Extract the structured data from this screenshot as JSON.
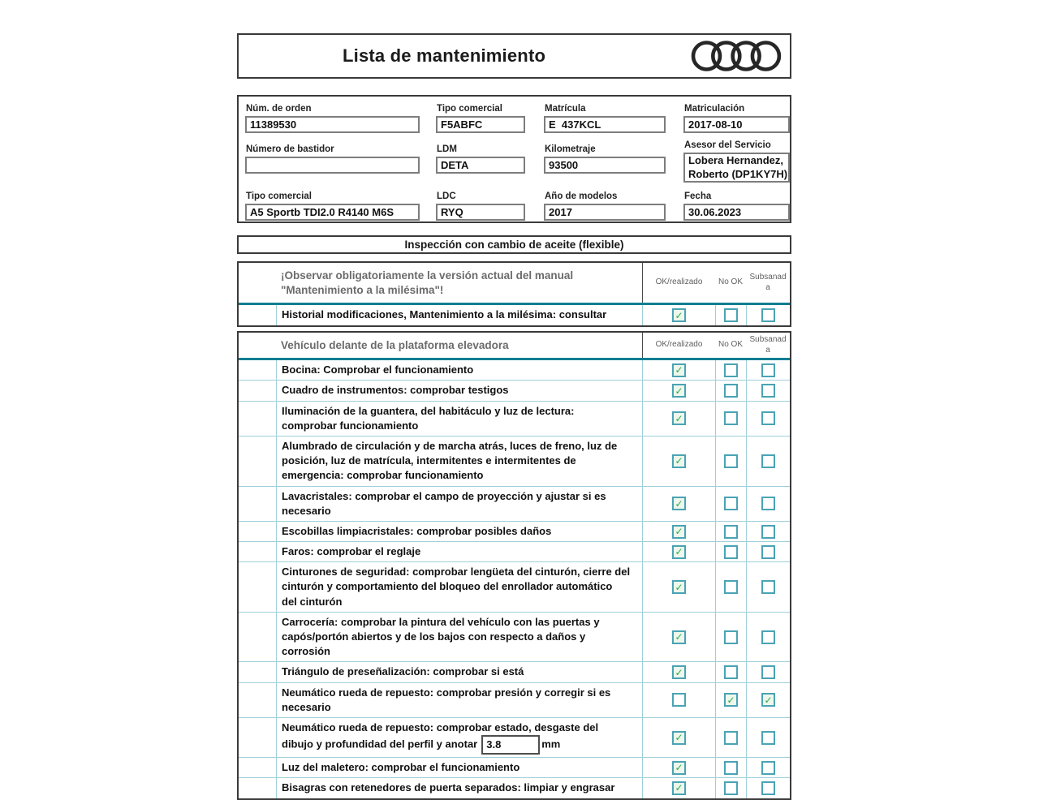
{
  "header": {
    "title": "Lista de mantenimiento",
    "logo_icon": "audi-rings-icon"
  },
  "form": {
    "fields": [
      {
        "label": "Núm. de orden",
        "value": "11389530"
      },
      {
        "label": "Tipo comercial",
        "value": "F5ABFC"
      },
      {
        "label": "Matrícula",
        "value": "E  437KCL"
      },
      {
        "label": "Matriculación",
        "value": "2017-08-10"
      },
      {
        "label": "Número de bastidor",
        "value": ""
      },
      {
        "label": "LDM",
        "value": "DETA"
      },
      {
        "label": "Kilometraje",
        "value": "93500"
      },
      {
        "label": "Asesor del Servicio",
        "value": "Lobera Hernandez,\nRoberto (DP1KY7H)"
      },
      {
        "label": "Tipo comercial",
        "value": "A5 Sportb TDI2.0 R4140 M6S"
      },
      {
        "label": "LDC",
        "value": "RYQ"
      },
      {
        "label": "Año de modelos",
        "value": "2017"
      },
      {
        "label": "Fecha",
        "value": "30.06.2023"
      }
    ]
  },
  "section_bar": {
    "title": "Inspección con cambio de aceite (flexible)"
  },
  "columns": {
    "ok": "OK/realizado",
    "nok": "No OK",
    "sub": "Subsanada"
  },
  "checklists": [
    {
      "heading": "¡Observar obligatoriamente la versión actual del manual\n\"Mantenimiento a la milésima\"!",
      "rows": [
        {
          "text": "Historial modificaciones, Mantenimiento a la milésima: consultar",
          "ok": true,
          "nok": false,
          "sub": false
        }
      ]
    },
    {
      "heading": "Vehículo delante de la plataforma elevadora",
      "rows": [
        {
          "text": "Bocina: Comprobar el funcionamiento",
          "ok": true,
          "nok": false,
          "sub": false
        },
        {
          "text": "Cuadro de instrumentos: comprobar testigos",
          "ok": true,
          "nok": false,
          "sub": false
        },
        {
          "text": "Iluminación de la guantera, del habitáculo y luz de lectura:\ncomprobar funcionamiento",
          "ok": true,
          "nok": false,
          "sub": false
        },
        {
          "text": "Alumbrado de circulación y de marcha atrás, luces de freno, luz de\nposición, luz de matrícula, intermitentes e intermitentes de\nemergencia: comprobar funcionamiento",
          "ok": true,
          "nok": false,
          "sub": false
        },
        {
          "text": "Lavacristales: comprobar el campo de proyección y ajustar si es\nnecesario",
          "ok": true,
          "nok": false,
          "sub": false
        },
        {
          "text": "Escobillas limpiacristales: comprobar posibles daños",
          "ok": true,
          "nok": false,
          "sub": false
        },
        {
          "text": "Faros: comprobar el reglaje",
          "ok": true,
          "nok": false,
          "sub": false
        },
        {
          "text": "Cinturones de seguridad: comprobar lengüeta del cinturón, cierre del\ncinturón y comportamiento del bloqueo del enrollador automático\ndel cinturón",
          "ok": true,
          "nok": false,
          "sub": false
        },
        {
          "text": "Carrocería: comprobar la pintura del vehículo con las puertas y\ncapós/portón abiertos y de los bajos con respecto a daños y\ncorrosión",
          "ok": true,
          "nok": false,
          "sub": false
        },
        {
          "text": "Triángulo de preseñalización: comprobar si está",
          "ok": true,
          "nok": false,
          "sub": false
        },
        {
          "text": "Neumático rueda de repuesto: comprobar presión y corregir si es\nnecesario",
          "ok": false,
          "nok": true,
          "sub": true
        },
        {
          "text": "Neumático rueda de repuesto: comprobar estado, desgaste del\ndibujo y profundidad del perfil y anotar",
          "input_value": "3.8",
          "input_suffix": "mm",
          "ok": true,
          "nok": false,
          "sub": false
        },
        {
          "text": "Luz del maletero: comprobar el funcionamiento",
          "ok": true,
          "nok": false,
          "sub": false
        },
        {
          "text": "Bisagras con retenedores de puerta separados: limpiar y engrasar",
          "ok": true,
          "nok": false,
          "sub": false
        }
      ]
    }
  ],
  "colors": {
    "accent_teal": "#4aa3b4",
    "row_line_teal": "#9fd0da",
    "header_underline_teal": "#107e92",
    "check_green": "#2ba84a",
    "checked_fill": "#eef7ec",
    "border_dark": "#3a3a3a"
  }
}
